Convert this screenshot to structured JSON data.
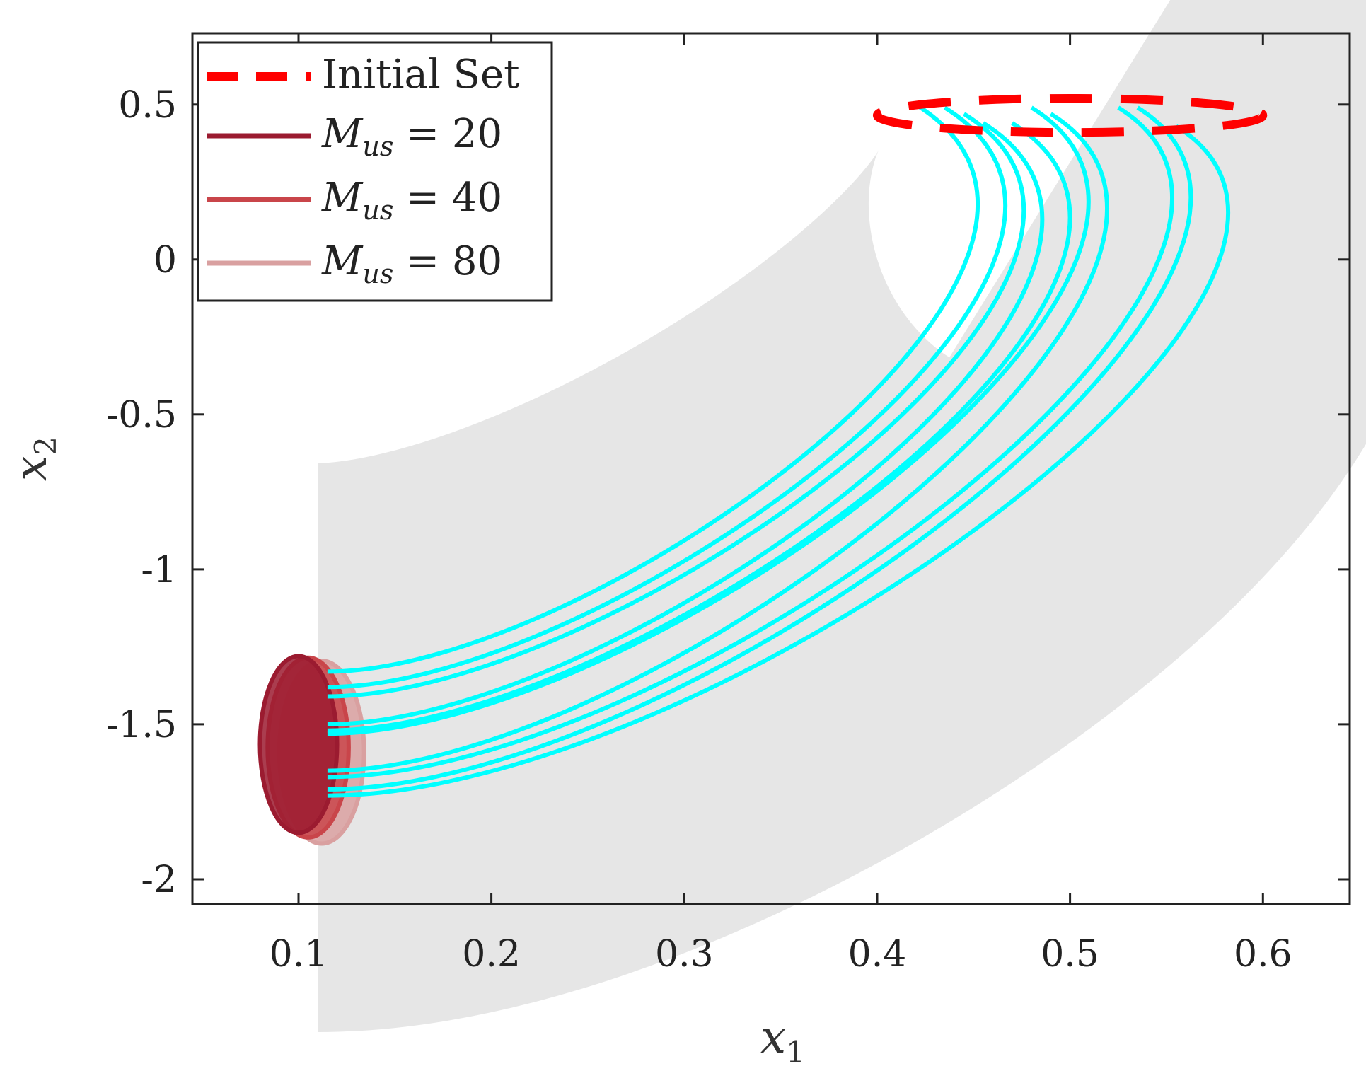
{
  "chart_data": {
    "type": "line",
    "title": "",
    "xlabel": "x",
    "xlabel_sub": "1",
    "ylabel": "x",
    "ylabel_sub": "2",
    "xlim": [
      0.045,
      0.645
    ],
    "ylim": [
      -2.08,
      0.73
    ],
    "xticks": [
      0.1,
      0.2,
      0.3,
      0.4,
      0.5,
      0.6
    ],
    "xtick_labels": [
      "0.1",
      "0.2",
      "0.3",
      "0.4",
      "0.5",
      "0.6"
    ],
    "yticks": [
      0.5,
      0,
      -0.5,
      -1,
      -1.5,
      -2
    ],
    "ytick_labels": [
      "0.5",
      "0",
      "-0.5",
      "-1",
      "-1.5",
      "-2"
    ],
    "grid": false,
    "legend_position": "top-left",
    "legend": [
      {
        "label": "Initial Set",
        "style": "dashed",
        "color": "#ff0000"
      },
      {
        "label_var": "M",
        "label_sub": "us",
        "label_eq": " = 20",
        "style": "solid",
        "color": "#9b1b30"
      },
      {
        "label_var": "M",
        "label_sub": "us",
        "label_eq": " = 40",
        "style": "solid",
        "color": "#c9454a"
      },
      {
        "label_var": "M",
        "label_sub": "us",
        "label_eq": " = 80",
        "style": "solid",
        "color": "#d9a0a0"
      }
    ],
    "initial_set": {
      "center": [
        0.5,
        0.465
      ],
      "radii": [
        0.1,
        0.055
      ],
      "color": "#ff0000"
    },
    "reach_tube": {
      "color": "#e6e6e6",
      "center_start": [
        0.515,
        0.465
      ],
      "center_end": [
        0.11,
        -1.575
      ],
      "half_width": 0.295
    },
    "trajectories": {
      "color": "#00ffff",
      "starts": [
        [
          0.42,
          0.5
        ],
        [
          0.435,
          0.49
        ],
        [
          0.445,
          0.47
        ],
        [
          0.455,
          0.44
        ],
        [
          0.47,
          0.44
        ],
        [
          0.48,
          0.49
        ],
        [
          0.49,
          0.47
        ],
        [
          0.525,
          0.49
        ],
        [
          0.535,
          0.49
        ],
        [
          0.555,
          0.43
        ]
      ],
      "ends": [
        [
          0.115,
          -1.33
        ],
        [
          0.115,
          -1.38
        ],
        [
          0.115,
          -1.41
        ],
        [
          0.115,
          -1.5
        ],
        [
          0.115,
          -1.52
        ],
        [
          0.115,
          -1.53
        ],
        [
          0.115,
          -1.65
        ],
        [
          0.115,
          -1.67
        ],
        [
          0.115,
          -1.71
        ],
        [
          0.115,
          -1.73
        ]
      ]
    },
    "final_sets": [
      {
        "name": "M_us = 80",
        "center": [
          0.112,
          -1.59
        ],
        "radii": [
          0.022,
          0.295
        ],
        "color": "#d9a0a0"
      },
      {
        "name": "M_us = 40",
        "center": [
          0.105,
          -1.575
        ],
        "radii": [
          0.021,
          0.29
        ],
        "color": "#c9454a"
      },
      {
        "name": "M_us = 20",
        "center": [
          0.1,
          -1.565
        ],
        "radii": [
          0.02,
          0.285
        ],
        "color": "#9b1b30"
      }
    ]
  }
}
